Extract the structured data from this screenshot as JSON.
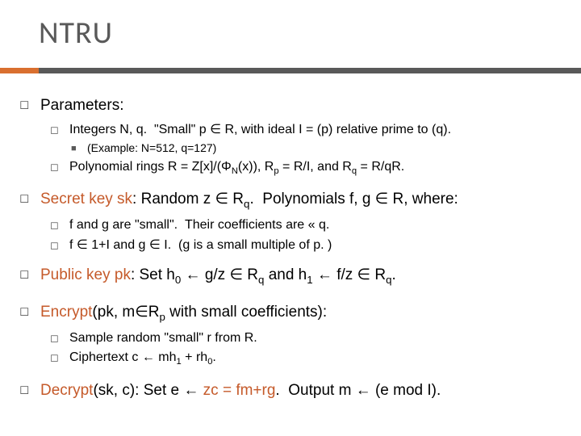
{
  "title": "NTRU",
  "colors": {
    "accent_orange": "#d96f2f",
    "accent_gray": "#595959",
    "text_orange": "#c55a2a",
    "background": "#ffffff"
  },
  "bullets": {
    "l1": "◻",
    "l2": "◻",
    "l3": "■"
  },
  "items": [
    {
      "text": "Parameters:",
      "children": [
        {
          "html": "Integers N, q.&nbsp;&nbsp;\"Small\" p ∈ R, with ideal I = (p) relative prime to (q).",
          "children": [
            {
              "html": "(Example: N=512, q=127)"
            }
          ]
        },
        {
          "html": "Polynomial rings R = Z[x]/(Φ<span class=\"sub\">N</span>(x)), R<span class=\"sub\">p</span> = R/I, and R<span class=\"sub\">q</span> = R/qR."
        }
      ]
    },
    {
      "html": "<span class=\"orange\">Secret key sk</span>: Random z ∈ R<span class=\"sub\">q</span>.&nbsp;&nbsp;Polynomials f, g ∈ R, where:",
      "children": [
        {
          "html": "f and g are \"small\".&nbsp;&nbsp;Their coefficients are « q."
        },
        {
          "html": "f ∈ 1+I and g ∈ I.&nbsp;&nbsp;(g is a small multiple of p. )"
        }
      ]
    },
    {
      "html": "<span class=\"orange\">Public key pk</span>: Set h<span class=\"sub\">0</span> ← g/z ∈ R<span class=\"sub\">q</span> and h<span class=\"sub\">1</span> ← f/z ∈ R<span class=\"sub\">q</span>."
    },
    {
      "html": "<span class=\"orange\">Encrypt</span>(pk, m∈R<span class=\"sub\">p</span> with small coefficients):",
      "children": [
        {
          "html": "Sample random \"small\" r from R."
        },
        {
          "html": "Ciphertext c ← mh<span class=\"sub\">1</span> + rh<span class=\"sub\">0</span>."
        }
      ]
    },
    {
      "html": "<span class=\"orange\">Decrypt</span>(sk, c): Set e ← <span class=\"orange\">zc = fm+rg</span>.&nbsp;&nbsp;Output m ← (e mod I)."
    }
  ]
}
